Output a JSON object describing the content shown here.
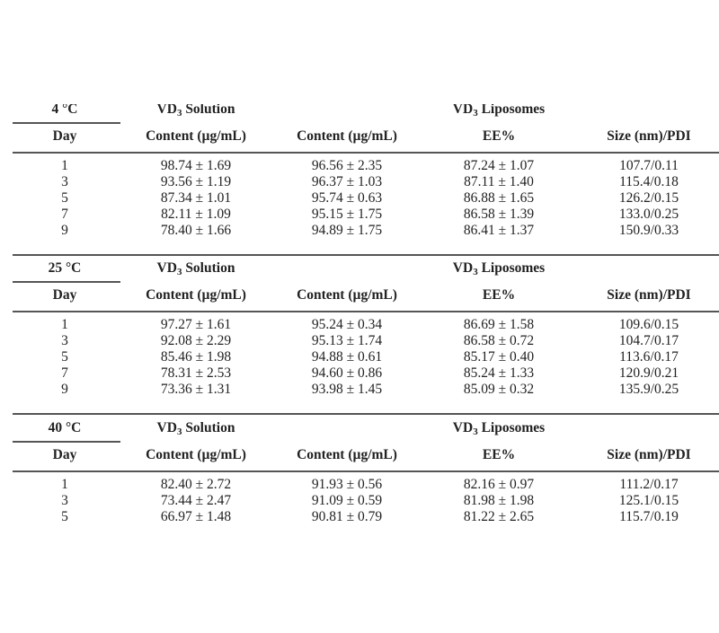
{
  "columns": {
    "day": "Day",
    "solution_group": "VD",
    "solution_group_sub": "3",
    "solution_group_rest": " Solution",
    "liposome_group": "VD",
    "liposome_group_sub": "3",
    "liposome_group_rest": " Liposomes",
    "headers": [
      "Content (µg/mL)",
      "Content (µg/mL)",
      "EE%",
      "Size (nm)/PDI"
    ]
  },
  "blocks": [
    {
      "temperature": "4 °C",
      "rows": [
        [
          "1",
          "98.74 ± 1.69",
          "96.56 ± 2.35",
          "87.24 ± 1.07",
          "107.7/0.11"
        ],
        [
          "3",
          "93.56 ± 1.19",
          "96.37 ± 1.03",
          "87.11 ± 1.40",
          "115.4/0.18"
        ],
        [
          "5",
          "87.34 ± 1.01",
          "95.74 ± 0.63",
          "86.88 ± 1.65",
          "126.2/0.15"
        ],
        [
          "7",
          "82.11 ± 1.09",
          "95.15 ± 1.75",
          "86.58 ± 1.39",
          "133.0/0.25"
        ],
        [
          "9",
          "78.40 ± 1.66",
          "94.89 ± 1.75",
          "86.41 ± 1.37",
          "150.9/0.33"
        ]
      ]
    },
    {
      "temperature": "25 °C",
      "rows": [
        [
          "1",
          "97.27 ± 1.61",
          "95.24 ± 0.34",
          "86.69 ± 1.58",
          "109.6/0.15"
        ],
        [
          "3",
          "92.08 ± 2.29",
          "95.13 ± 1.74",
          "86.58 ± 0.72",
          "104.7/0.17"
        ],
        [
          "5",
          "85.46 ± 1.98",
          "94.88 ± 0.61",
          "85.17 ± 0.40",
          "113.6/0.17"
        ],
        [
          "7",
          "78.31 ± 2.53",
          "94.60 ± 0.86",
          "85.24 ± 1.33",
          "120.9/0.21"
        ],
        [
          "9",
          "73.36 ± 1.31",
          "93.98 ± 1.45",
          "85.09 ± 0.32",
          "135.9/0.25"
        ]
      ]
    },
    {
      "temperature": "40 °C",
      "rows": [
        [
          "1",
          "82.40 ± 2.72",
          "91.93 ± 0.56",
          "82.16 ± 0.97",
          "111.2/0.17"
        ],
        [
          "3",
          "73.44 ± 2.47",
          "91.09 ± 0.59",
          "81.98 ± 1.98",
          "125.1/0.15"
        ],
        [
          "5",
          "66.97 ± 1.48",
          "90.81 ± 0.79",
          "81.22 ± 2.65",
          "115.7/0.19"
        ]
      ]
    }
  ]
}
